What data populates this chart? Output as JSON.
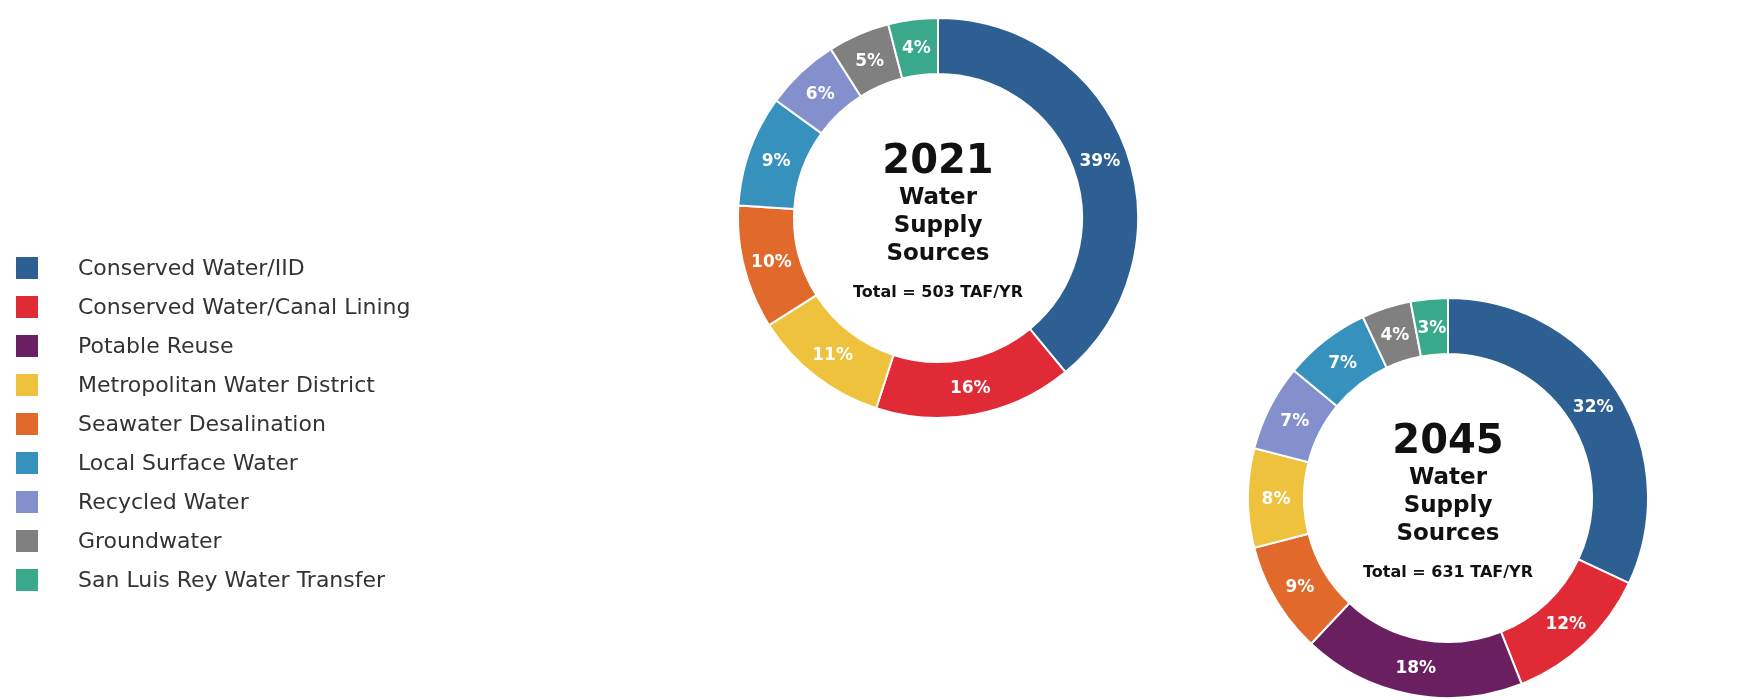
{
  "chart_data": [
    {
      "type": "donut",
      "title": "2021",
      "subtitle": "Water Supply Sources",
      "annotations": [
        "Total = 503 TAF/YR"
      ],
      "categories": [
        "Conserved Water/IID",
        "Conserved Water/Canal Lining",
        "Potable Reuse",
        "Metropolitan Water District",
        "Seawater Desalination",
        "Local Surface Water",
        "Recycled Water",
        "Groundwater",
        "San Luis Rey Water Transfer"
      ],
      "values": [
        39,
        16,
        null,
        11,
        10,
        9,
        6,
        5,
        4
      ],
      "value_labels": [
        "39%",
        "16%",
        null,
        "11%",
        "10%",
        "9%",
        "6%",
        "5%",
        "4%"
      ],
      "colors": [
        "#2d5f93",
        "#e02a35",
        "#6a2060",
        "#efc23e",
        "#e0692b",
        "#3691bd",
        "#8490cc",
        "#808080",
        "#3aa88a"
      ],
      "legend": "left"
    },
    {
      "type": "donut",
      "title": "2045",
      "subtitle": "Water Supply Sources",
      "annotations": [
        "Total = 631 TAF/YR"
      ],
      "categories": [
        null,
        null,
        null,
        null,
        null,
        null,
        null,
        null,
        null
      ],
      "values": [
        32,
        12,
        18,
        9,
        8,
        7,
        7,
        4,
        3
      ],
      "value_labels": [
        "32%",
        "12%",
        "18%",
        "9%",
        "8%",
        "7%",
        "7%",
        "4%",
        "3%"
      ],
      "colors": [
        "#2d5f93",
        "#e02a35",
        "#6a2060",
        "#e0692b",
        "#efc23e",
        "#8490cc",
        "#3691bd",
        "#808080",
        "#3aa88a"
      ]
    }
  ]
}
